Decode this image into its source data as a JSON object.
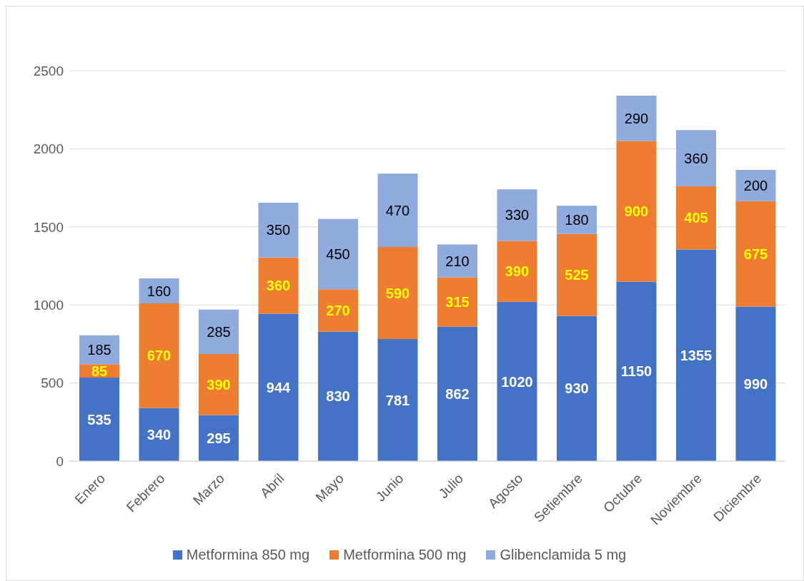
{
  "chart_data": {
    "type": "bar",
    "stacked": true,
    "categories": [
      "Enero",
      "Febrero",
      "Marzo",
      "Abril",
      "Mayo",
      "Junio",
      "Julio",
      "Agosto",
      "Setiembre",
      "Octubre",
      "Noviembre",
      "Diciembre"
    ],
    "series": [
      {
        "name": "Metformina 850 mg",
        "color": "#4472c4",
        "values": [
          535,
          340,
          295,
          944,
          830,
          781,
          862,
          1020,
          930,
          1150,
          1355,
          990
        ]
      },
      {
        "name": "Metformina 500 mg",
        "color": "#ed7d31",
        "values": [
          85,
          670,
          390,
          360,
          270,
          590,
          315,
          390,
          525,
          900,
          405,
          675
        ]
      },
      {
        "name": "Glibenclamida 5 mg",
        "color": "#8faadc",
        "values": [
          185,
          160,
          285,
          350,
          450,
          470,
          210,
          330,
          180,
          290,
          360,
          200
        ]
      }
    ],
    "ylim": [
      0,
      2500
    ],
    "yticks": [
      0,
      500,
      1000,
      1500,
      2000,
      2500
    ],
    "grid": "y",
    "legend": "bottom",
    "data_labels": true
  }
}
